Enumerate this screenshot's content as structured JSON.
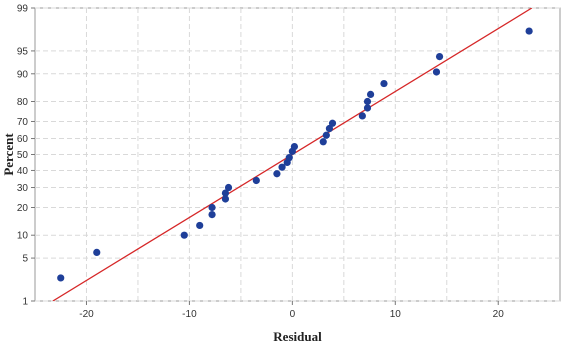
{
  "chart_data": {
    "type": "scatter",
    "subtype": "normal-probability-plot",
    "xlabel": "Residual",
    "ylabel": "Percent",
    "xlim": [
      -25,
      26
    ],
    "ylim_percent": [
      1,
      99
    ],
    "y_scale": "normal-probability",
    "grid": true,
    "x_ticks": [
      -20,
      -10,
      0,
      10,
      20
    ],
    "y_ticks": [
      1,
      5,
      10,
      20,
      30,
      40,
      50,
      60,
      70,
      80,
      90,
      95,
      99
    ],
    "x_grid": [
      -20,
      -15,
      -10,
      -5,
      0,
      5,
      10,
      15,
      20
    ],
    "y_grid": [
      1,
      5,
      10,
      20,
      30,
      40,
      50,
      60,
      70,
      80,
      90,
      95,
      99
    ],
    "fit_line": {
      "mean": 0,
      "sd": 10,
      "color": "#d62728"
    },
    "point_color": "#1f3f99",
    "points": [
      {
        "x": -22.5,
        "y": 2.5
      },
      {
        "x": -19.0,
        "y": 6.0
      },
      {
        "x": -10.5,
        "y": 10.0
      },
      {
        "x": -9.0,
        "y": 13.0
      },
      {
        "x": -7.8,
        "y": 17.0
      },
      {
        "x": -7.8,
        "y": 20.0
      },
      {
        "x": -6.5,
        "y": 24.0
      },
      {
        "x": -6.5,
        "y": 27.0
      },
      {
        "x": -6.2,
        "y": 30.0
      },
      {
        "x": -3.5,
        "y": 34.0
      },
      {
        "x": -1.5,
        "y": 38.0
      },
      {
        "x": -1.0,
        "y": 42.0
      },
      {
        "x": -0.5,
        "y": 45.0
      },
      {
        "x": -0.3,
        "y": 48.0
      },
      {
        "x": 0.0,
        "y": 52.0
      },
      {
        "x": 0.2,
        "y": 55.0
      },
      {
        "x": 3.0,
        "y": 58.0
      },
      {
        "x": 3.3,
        "y": 62.0
      },
      {
        "x": 3.6,
        "y": 66.0
      },
      {
        "x": 3.9,
        "y": 69.0
      },
      {
        "x": 6.8,
        "y": 73.0
      },
      {
        "x": 7.3,
        "y": 77.0
      },
      {
        "x": 7.3,
        "y": 80.0
      },
      {
        "x": 7.6,
        "y": 83.0
      },
      {
        "x": 8.9,
        "y": 87.0
      },
      {
        "x": 14.0,
        "y": 90.5
      },
      {
        "x": 14.3,
        "y": 94.0
      },
      {
        "x": 23.0,
        "y": 97.5
      }
    ]
  }
}
